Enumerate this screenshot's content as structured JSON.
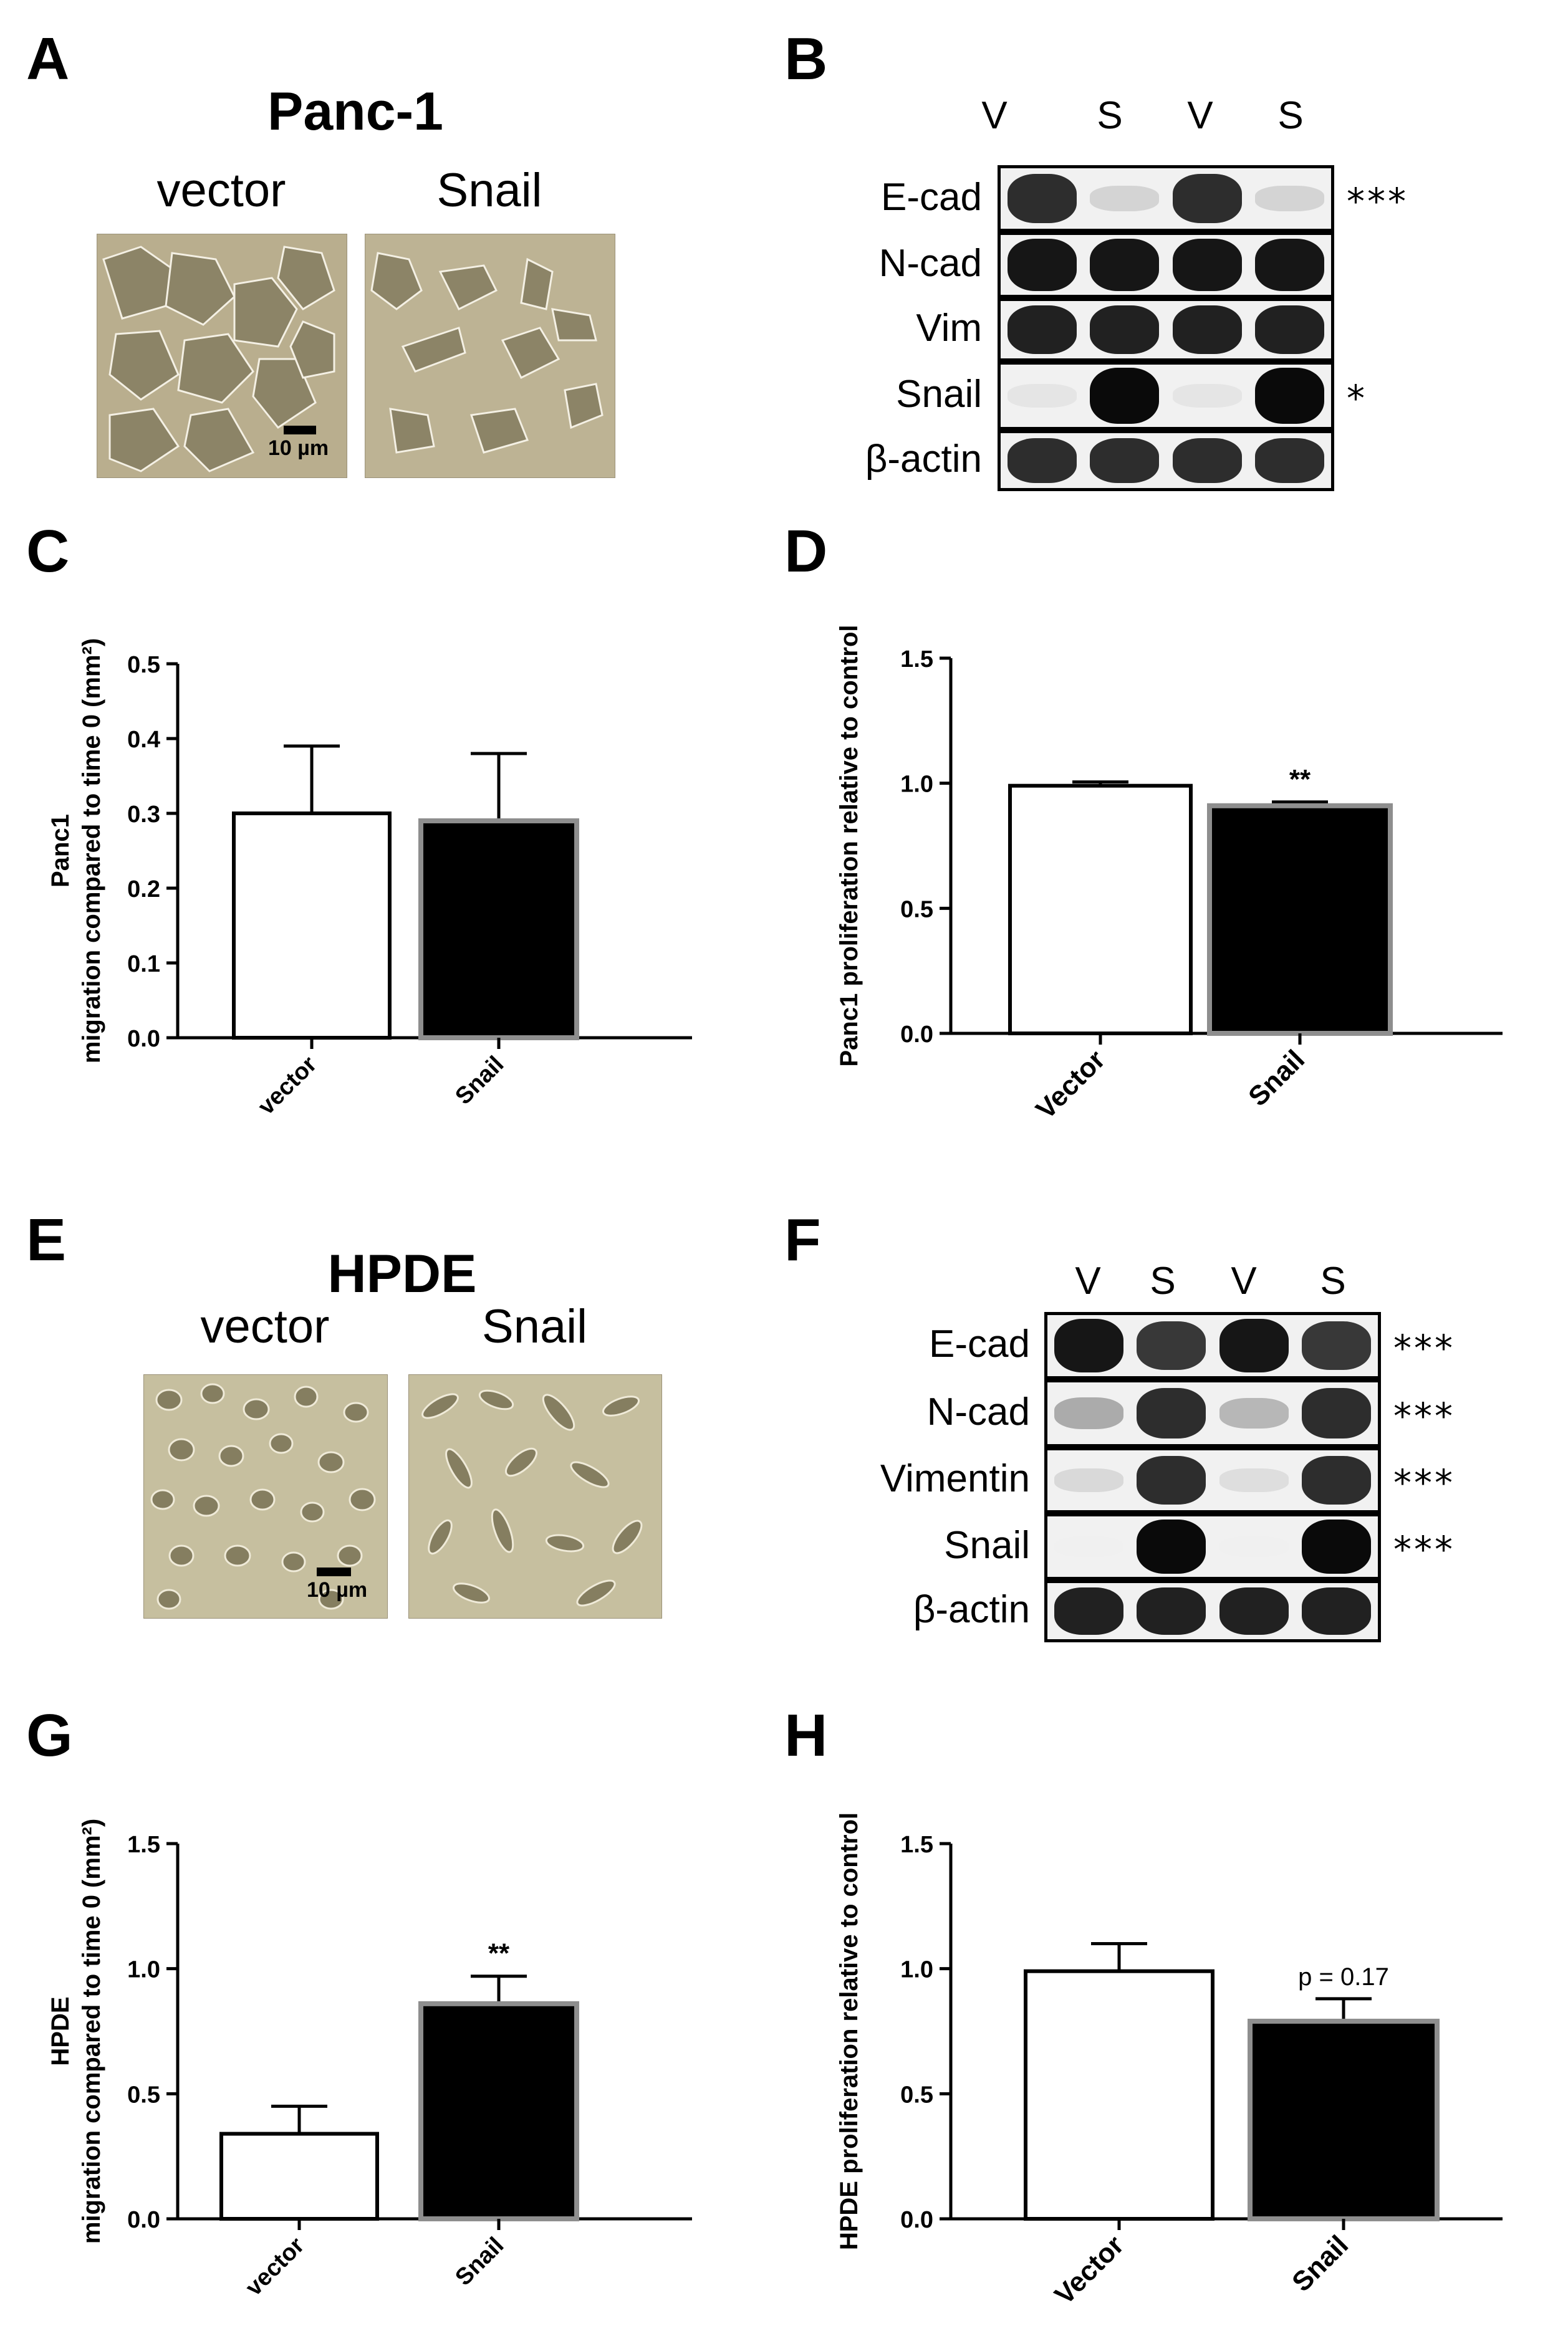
{
  "panels": {
    "A": {
      "letter": "A",
      "title": "Panc-1",
      "labels": [
        "vector",
        "Snail"
      ],
      "scale": "10 µm"
    },
    "B": {
      "letter": "B",
      "lanes": [
        "V",
        "S",
        "V",
        "S"
      ],
      "rows": [
        {
          "label": "E-cad",
          "sig": "***",
          "intensity": [
            0.85,
            0.12,
            0.85,
            0.12
          ]
        },
        {
          "label": "N-cad",
          "sig": "",
          "intensity": [
            0.95,
            0.95,
            0.95,
            0.95
          ]
        },
        {
          "label": "Vim",
          "sig": "",
          "intensity": [
            0.9,
            0.9,
            0.9,
            0.9
          ]
        },
        {
          "label": "Snail",
          "sig": "*",
          "intensity": [
            0.05,
            1.0,
            0.05,
            1.0
          ]
        },
        {
          "label": "β-actin",
          "sig": "",
          "intensity": [
            0.85,
            0.85,
            0.85,
            0.85
          ]
        }
      ]
    },
    "C": {
      "letter": "C"
    },
    "D": {
      "letter": "D"
    },
    "E": {
      "letter": "E",
      "title": "HPDE",
      "labels": [
        "vector",
        "Snail"
      ],
      "scale": "10 µm"
    },
    "F": {
      "letter": "F",
      "lanes": [
        "V",
        "S",
        "V",
        "S"
      ],
      "rows": [
        {
          "label": "E-cad",
          "sig": "***",
          "intensity": [
            0.95,
            0.8,
            0.95,
            0.8
          ]
        },
        {
          "label": "N-cad",
          "sig": "***",
          "intensity": [
            0.3,
            0.85,
            0.25,
            0.85
          ]
        },
        {
          "label": "Vimentin",
          "sig": "***",
          "intensity": [
            0.1,
            0.85,
            0.08,
            0.85
          ]
        },
        {
          "label": "Snail",
          "sig": "***",
          "intensity": [
            0.0,
            1.0,
            0.0,
            1.0
          ]
        },
        {
          "label": "β-actin",
          "sig": "",
          "intensity": [
            0.9,
            0.9,
            0.9,
            0.9
          ]
        }
      ]
    },
    "G": {
      "letter": "G"
    },
    "H": {
      "letter": "H"
    }
  },
  "chart_data": [
    {
      "id": "C",
      "type": "bar",
      "categories": [
        "vector",
        "Snail"
      ],
      "values": [
        0.3,
        0.29
      ],
      "errors": [
        0.09,
        0.09
      ],
      "ylabel_line1": "Panc1",
      "ylabel_line2": "migration compared to time 0 (mm²)",
      "ylim": [
        0,
        0.5
      ],
      "yticks": [
        "0.0",
        "0.1",
        "0.2",
        "0.3",
        "0.4",
        "0.5"
      ],
      "annotations": [
        "",
        ""
      ],
      "colors": [
        "#ffffff",
        "#000000"
      ]
    },
    {
      "id": "D",
      "type": "bar",
      "categories": [
        "Vector",
        "Snail"
      ],
      "values": [
        0.99,
        0.91
      ],
      "errors": [
        0.015,
        0.015
      ],
      "ylabel_line1": "Panc1 proliferation relative to control",
      "ylabel_line2": "",
      "ylim": [
        0,
        1.5
      ],
      "yticks": [
        "0.0",
        "0.5",
        "1.0",
        "1.5"
      ],
      "annotations": [
        "",
        "**"
      ],
      "colors": [
        "#ffffff",
        "#000000"
      ]
    },
    {
      "id": "G",
      "type": "bar",
      "categories": [
        "vector",
        "Snail"
      ],
      "values": [
        0.34,
        0.86
      ],
      "errors": [
        0.11,
        0.11
      ],
      "ylabel_line1": "HPDE",
      "ylabel_line2": "migration compared to time 0 (mm²)",
      "ylim": [
        0,
        1.5
      ],
      "yticks": [
        "0.0",
        "0.5",
        "1.0",
        "1.5"
      ],
      "annotations": [
        "",
        "**"
      ],
      "colors": [
        "#ffffff",
        "#000000"
      ]
    },
    {
      "id": "H",
      "type": "bar",
      "categories": [
        "Vector",
        "Snail"
      ],
      "values": [
        0.99,
        0.79
      ],
      "errors": [
        0.11,
        0.09
      ],
      "ylabel_line1": "HPDE proliferation relative to control",
      "ylabel_line2": "",
      "ylim": [
        0,
        1.5
      ],
      "yticks": [
        "0.0",
        "0.5",
        "1.0",
        "1.5"
      ],
      "annotations": [
        "",
        "p = 0.17"
      ],
      "colors": [
        "#ffffff",
        "#000000"
      ]
    }
  ]
}
